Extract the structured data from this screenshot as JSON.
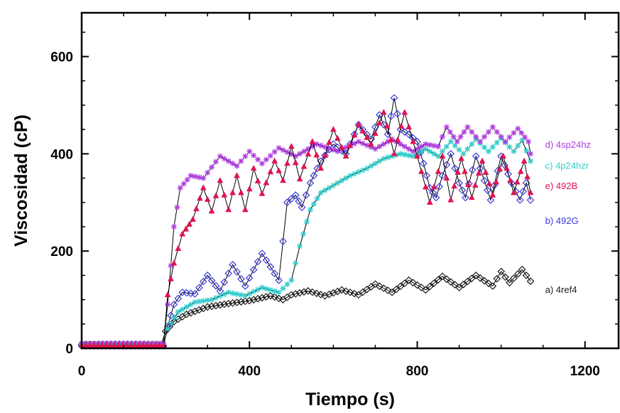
{
  "chart_data": {
    "type": "line",
    "xlabel": "Tiempo (s)",
    "ylabel": "Viscosidad (cP)",
    "xlim": [
      0,
      1280
    ],
    "ylim": [
      0,
      690
    ],
    "x_ticks": [
      0,
      400,
      800,
      1200
    ],
    "y_ticks": [
      0,
      200,
      400,
      600
    ],
    "x_tick_labels": [
      "0",
      "400",
      "800",
      "1200"
    ],
    "y_tick_labels": [
      "0",
      "200",
      "400",
      "600"
    ],
    "grid": false,
    "series": [
      {
        "name": "a) 4ref4",
        "color": "#1a1a1a",
        "marker": "diamond",
        "label_anchor": [
          1105,
          120
        ],
        "points": [
          [
            0,
            8
          ],
          [
            190,
            8
          ],
          [
            200,
            35
          ],
          [
            220,
            55
          ],
          [
            250,
            70
          ],
          [
            300,
            85
          ],
          [
            350,
            92
          ],
          [
            400,
            98
          ],
          [
            450,
            108
          ],
          [
            480,
            100
          ],
          [
            500,
            110
          ],
          [
            540,
            118
          ],
          [
            580,
            108
          ],
          [
            620,
            120
          ],
          [
            660,
            110
          ],
          [
            700,
            132
          ],
          [
            740,
            115
          ],
          [
            780,
            140
          ],
          [
            820,
            120
          ],
          [
            860,
            148
          ],
          [
            900,
            125
          ],
          [
            940,
            150
          ],
          [
            980,
            128
          ],
          [
            1000,
            158
          ],
          [
            1020,
            135
          ],
          [
            1050,
            162
          ],
          [
            1070,
            138
          ]
        ]
      },
      {
        "name": "b) 492G",
        "color": "#3a3ae0",
        "marker": "diamond",
        "label_anchor": [
          1105,
          262
        ],
        "points": [
          [
            0,
            5
          ],
          [
            195,
            5
          ],
          [
            205,
            45
          ],
          [
            220,
            90
          ],
          [
            240,
            115
          ],
          [
            270,
            112
          ],
          [
            300,
            150
          ],
          [
            330,
            118
          ],
          [
            360,
            172
          ],
          [
            390,
            128
          ],
          [
            430,
            195
          ],
          [
            470,
            140
          ],
          [
            490,
            300
          ],
          [
            510,
            315
          ],
          [
            525,
            290
          ],
          [
            545,
            340
          ],
          [
            570,
            385
          ],
          [
            600,
            420
          ],
          [
            630,
            400
          ],
          [
            660,
            460
          ],
          [
            690,
            430
          ],
          [
            710,
            480
          ],
          [
            730,
            440
          ],
          [
            745,
            515
          ],
          [
            760,
            450
          ],
          [
            780,
            440
          ],
          [
            800,
            425
          ],
          [
            815,
            380
          ],
          [
            830,
            330
          ],
          [
            845,
            310
          ],
          [
            860,
            355
          ],
          [
            880,
            400
          ],
          [
            900,
            340
          ],
          [
            915,
            310
          ],
          [
            940,
            395
          ],
          [
            960,
            345
          ],
          [
            975,
            305
          ],
          [
            1000,
            395
          ],
          [
            1025,
            340
          ],
          [
            1045,
            305
          ],
          [
            1060,
            340
          ],
          [
            1070,
            305
          ]
        ]
      },
      {
        "name": "c) 4p24hzr",
        "color": "#33cccc",
        "marker": "star",
        "label_anchor": [
          1105,
          375
        ],
        "points": [
          [
            0,
            8
          ],
          [
            195,
            8
          ],
          [
            205,
            40
          ],
          [
            230,
            75
          ],
          [
            270,
            95
          ],
          [
            310,
            100
          ],
          [
            350,
            115
          ],
          [
            390,
            108
          ],
          [
            430,
            125
          ],
          [
            470,
            115
          ],
          [
            500,
            140
          ],
          [
            520,
            210
          ],
          [
            545,
            285
          ],
          [
            570,
            320
          ],
          [
            600,
            335
          ],
          [
            640,
            355
          ],
          [
            680,
            370
          ],
          [
            720,
            390
          ],
          [
            760,
            400
          ],
          [
            790,
            395
          ],
          [
            820,
            410
          ],
          [
            850,
            395
          ],
          [
            880,
            425
          ],
          [
            910,
            400
          ],
          [
            940,
            430
          ],
          [
            970,
            405
          ],
          [
            1000,
            432
          ],
          [
            1030,
            405
          ],
          [
            1050,
            428
          ],
          [
            1070,
            385
          ]
        ]
      },
      {
        "name": "d) 4sp24hz",
        "color": "#b03ce0",
        "marker": "star",
        "label_anchor": [
          1105,
          418
        ],
        "points": [
          [
            0,
            10
          ],
          [
            195,
            10
          ],
          [
            205,
            90
          ],
          [
            220,
            250
          ],
          [
            235,
            330
          ],
          [
            260,
            355
          ],
          [
            290,
            350
          ],
          [
            330,
            395
          ],
          [
            370,
            375
          ],
          [
            400,
            405
          ],
          [
            430,
            380
          ],
          [
            470,
            412
          ],
          [
            510,
            395
          ],
          [
            560,
            420
          ],
          [
            610,
            405
          ],
          [
            660,
            425
          ],
          [
            700,
            410
          ],
          [
            740,
            430
          ],
          [
            790,
            405
          ],
          [
            820,
            420
          ],
          [
            850,
            415
          ],
          [
            870,
            455
          ],
          [
            895,
            425
          ],
          [
            920,
            455
          ],
          [
            950,
            425
          ],
          [
            980,
            455
          ],
          [
            1010,
            425
          ],
          [
            1040,
            452
          ],
          [
            1065,
            425
          ],
          [
            1070,
            400
          ]
        ]
      },
      {
        "name": "e) 492B",
        "color": "#e01450",
        "marker": "triangle",
        "label_anchor": [
          1105,
          333
        ],
        "points": [
          [
            0,
            6
          ],
          [
            195,
            6
          ],
          [
            205,
            110
          ],
          [
            220,
            175
          ],
          [
            240,
            235
          ],
          [
            265,
            265
          ],
          [
            290,
            330
          ],
          [
            310,
            282
          ],
          [
            330,
            345
          ],
          [
            350,
            285
          ],
          [
            370,
            355
          ],
          [
            390,
            285
          ],
          [
            410,
            370
          ],
          [
            430,
            318
          ],
          [
            460,
            385
          ],
          [
            480,
            345
          ],
          [
            500,
            415
          ],
          [
            520,
            348
          ],
          [
            550,
            425
          ],
          [
            570,
            370
          ],
          [
            600,
            450
          ],
          [
            630,
            395
          ],
          [
            660,
            460
          ],
          [
            690,
            420
          ],
          [
            720,
            485
          ],
          [
            745,
            400
          ],
          [
            770,
            485
          ],
          [
            800,
            395
          ],
          [
            830,
            300
          ],
          [
            860,
            395
          ],
          [
            880,
            305
          ],
          [
            905,
            390
          ],
          [
            930,
            310
          ],
          [
            955,
            385
          ],
          [
            980,
            315
          ],
          [
            1005,
            395
          ],
          [
            1030,
            320
          ],
          [
            1055,
            385
          ],
          [
            1070,
            320
          ]
        ]
      }
    ]
  }
}
